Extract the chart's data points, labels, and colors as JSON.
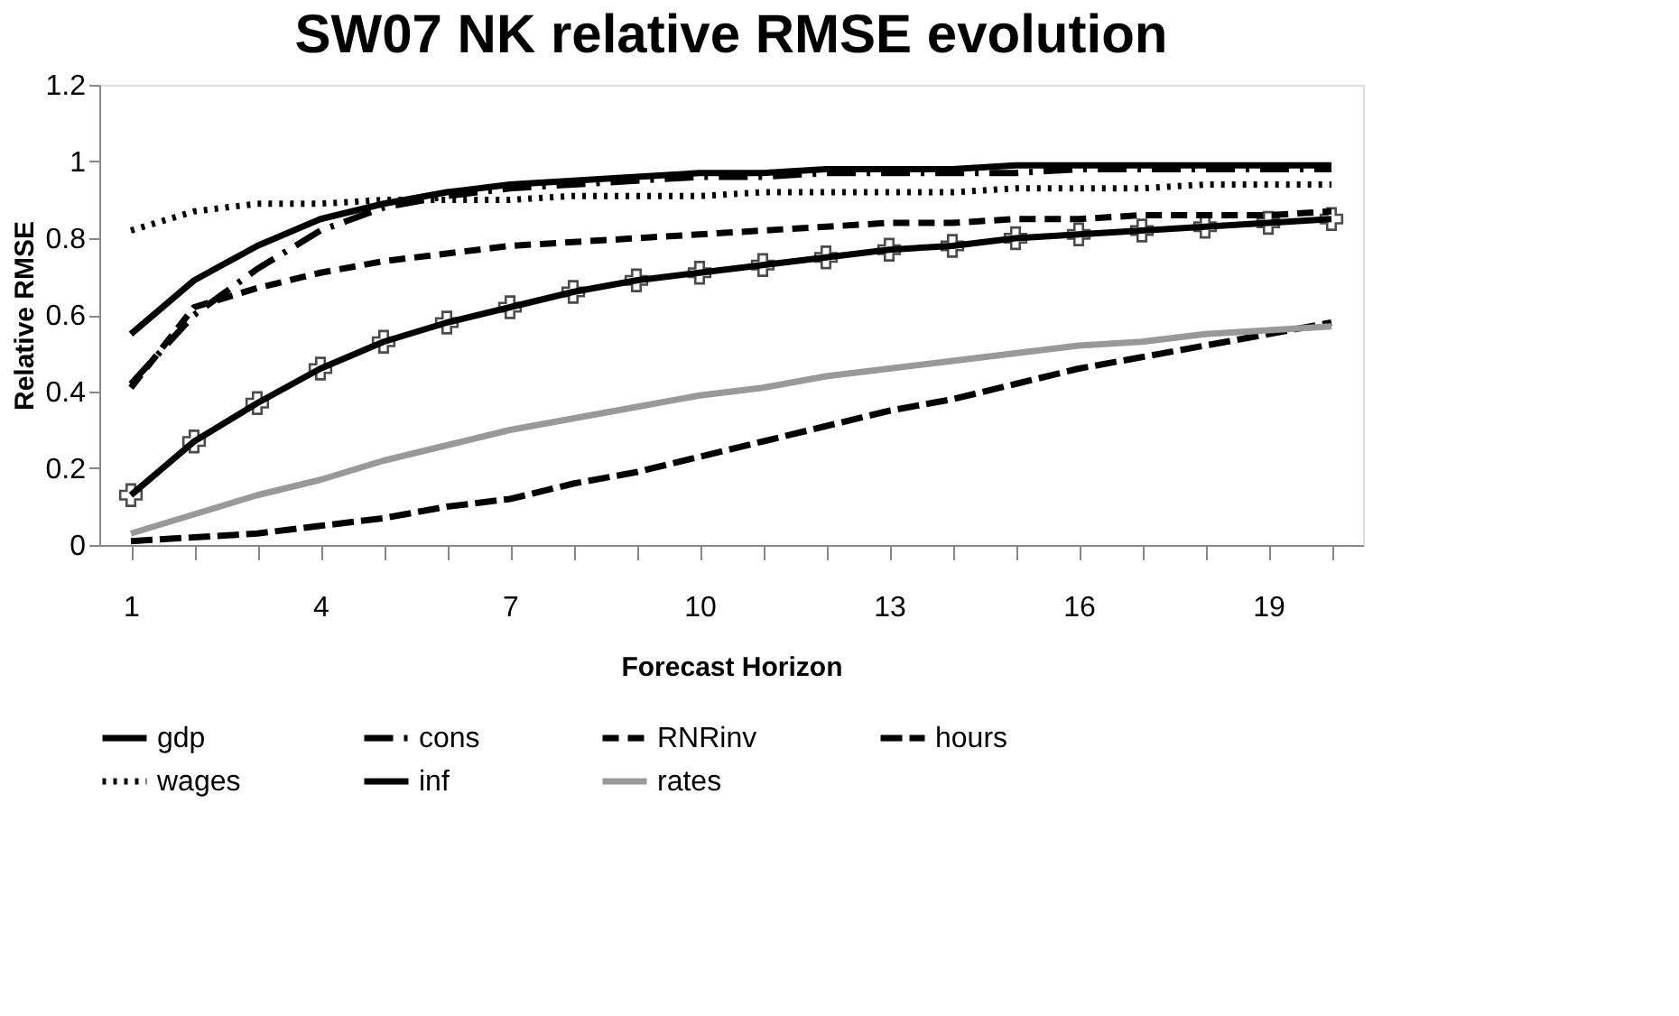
{
  "chart_data": {
    "type": "line",
    "title": "SW07 NK relative RMSE evolution",
    "xlabel": "Forecast Horizon",
    "ylabel": "Relative RMSE",
    "categories": [
      "1",
      null,
      null,
      "4",
      null,
      null,
      "7",
      null,
      null,
      "10",
      null,
      null,
      "13",
      null,
      null,
      "16",
      null,
      null,
      "19",
      null
    ],
    "ylim": [
      0,
      1.2
    ],
    "yticks": [
      {
        "value": 0,
        "label": "0"
      },
      0.2,
      0.4,
      0.6,
      0.8,
      {
        "value": 1,
        "label": "1"
      },
      1.2
    ],
    "grid": false,
    "legend": "bottom",
    "series": [
      {
        "name": "gdp",
        "color": "#000000",
        "line_style": "solid",
        "marker": "none",
        "values": [
          0.55,
          0.69,
          0.78,
          0.85,
          0.89,
          0.92,
          0.94,
          0.95,
          0.96,
          0.97,
          0.97,
          0.98,
          0.98,
          0.98,
          0.99,
          0.99,
          0.99,
          0.99,
          0.99,
          0.99
        ]
      },
      {
        "name": "cons",
        "color": "#000000",
        "line_style": "dashed",
        "marker": "none",
        "values": [
          0.42,
          0.6,
          0.72,
          0.82,
          0.88,
          0.91,
          0.93,
          0.94,
          0.95,
          0.96,
          0.96,
          0.97,
          0.97,
          0.97,
          0.97,
          0.98,
          0.98,
          0.98,
          0.98,
          0.98
        ]
      },
      {
        "name": "RNRinv",
        "color": "#000000",
        "line_style": "dashed",
        "marker": "none",
        "values": [
          0.41,
          0.62,
          0.67,
          0.71,
          0.74,
          0.76,
          0.78,
          0.79,
          0.8,
          0.81,
          0.82,
          0.83,
          0.84,
          0.84,
          0.85,
          0.85,
          0.86,
          0.86,
          0.86,
          0.87
        ]
      },
      {
        "name": "hours",
        "color": "#000000",
        "line_style": "dashed",
        "marker": "none",
        "values": [
          0.01,
          0.02,
          0.03,
          0.05,
          0.07,
          0.1,
          0.12,
          0.16,
          0.19,
          0.23,
          0.27,
          0.31,
          0.35,
          0.38,
          0.42,
          0.46,
          0.49,
          0.52,
          0.55,
          0.58
        ]
      },
      {
        "name": "wages",
        "color": "#000000",
        "line_style": "dotted",
        "marker": "none",
        "values": [
          0.82,
          0.87,
          0.89,
          0.89,
          0.9,
          0.9,
          0.9,
          0.91,
          0.91,
          0.91,
          0.92,
          0.92,
          0.92,
          0.92,
          0.93,
          0.93,
          0.93,
          0.94,
          0.94,
          0.94
        ]
      },
      {
        "name": "inf",
        "color": "#000000",
        "line_style": "solid",
        "marker": "cross",
        "values": [
          0.13,
          0.27,
          0.37,
          0.46,
          0.53,
          0.58,
          0.62,
          0.66,
          0.69,
          0.71,
          0.73,
          0.75,
          0.77,
          0.78,
          0.8,
          0.81,
          0.82,
          0.83,
          0.84,
          0.85
        ]
      },
      {
        "name": "rates",
        "color": "#999999",
        "line_style": "solid",
        "marker": "none",
        "values": [
          0.03,
          0.08,
          0.13,
          0.17,
          0.22,
          0.26,
          0.3,
          0.33,
          0.36,
          0.39,
          0.41,
          0.44,
          0.46,
          0.48,
          0.5,
          0.52,
          0.53,
          0.55,
          0.56,
          0.57
        ]
      }
    ]
  }
}
